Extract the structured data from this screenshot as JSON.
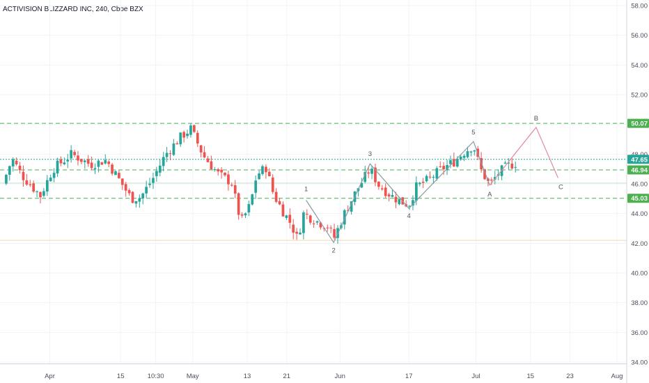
{
  "header": {
    "title": "ACTIVISION BLIZZARD INC, 240, Cboe BZX"
  },
  "colors": {
    "up": "#26a69a",
    "down": "#ef5350",
    "grid": "#f0f3fa",
    "dashed_level": "#4caf50",
    "dotted_level": "#26c6da",
    "wave": "#8a9aa3",
    "projection": "#e08a9a",
    "support": "#c8e6c9",
    "low_support": "#f0d9a8"
  },
  "chart_data": {
    "type": "candlestick",
    "title": "ACTIVISION BLIZZARD INC, 240, Cboe BZX",
    "xlabel": "",
    "ylabel": "",
    "ylim": [
      34,
      58
    ],
    "grid": true,
    "x_ticks": [
      "Apr",
      "15",
      "10:30",
      "May",
      "13",
      "21",
      "Jun",
      "17",
      "Jul",
      "15",
      "23",
      "Aug"
    ],
    "y_ticks": [
      "58.00",
      "56.00",
      "54.00",
      "52.00",
      "50.00",
      "48.00",
      "46.00",
      "44.00",
      "42.00",
      "40.00",
      "38.00",
      "36.00",
      "34.00"
    ],
    "price_levels": [
      {
        "label": "50.07",
        "value": 50.07,
        "style": "dashed",
        "color": "#4caf50"
      },
      {
        "label": "47.65",
        "value": 47.65,
        "style": "dotted",
        "color": "#26a69a"
      },
      {
        "label": "46.94",
        "value": 46.94,
        "style": "dashed",
        "color": "#4caf50"
      },
      {
        "label": "45.03",
        "value": 45.03,
        "style": "dashed",
        "color": "#4caf50"
      }
    ],
    "support_lines": [
      {
        "value": 46.05,
        "color": "#c8e6c9"
      },
      {
        "value": 42.2,
        "color": "#f0d9a8"
      }
    ],
    "wave_labels": [
      "1",
      "2",
      "3",
      "4",
      "5",
      "A",
      "B",
      "C"
    ],
    "wave_points": [
      {
        "label": "1",
        "t": 0.484,
        "v": 44.9
      },
      {
        "label": "2",
        "t": 0.528,
        "v": 42.05
      },
      {
        "label": "3",
        "t": 0.586,
        "v": 47.35
      },
      {
        "label": "4",
        "t": 0.648,
        "v": 44.35
      },
      {
        "label": "5",
        "t": 0.751,
        "v": 48.85
      },
      {
        "label": "A",
        "t": 0.777,
        "v": 45.9
      }
    ],
    "projection_points": [
      {
        "label": "A",
        "t": 0.777,
        "v": 45.9
      },
      {
        "label": "B",
        "t": 0.851,
        "v": 49.8
      },
      {
        "label": "C",
        "t": 0.886,
        "v": 46.4
      }
    ],
    "close_anchors": [
      [
        0.0,
        46.0
      ],
      [
        0.015,
        47.7
      ],
      [
        0.03,
        46.6
      ],
      [
        0.06,
        45.2
      ],
      [
        0.08,
        47.0
      ],
      [
        0.11,
        48.0
      ],
      [
        0.14,
        47.3
      ],
      [
        0.165,
        47.6
      ],
      [
        0.19,
        46.0
      ],
      [
        0.205,
        45.0
      ],
      [
        0.22,
        45.1
      ],
      [
        0.24,
        46.4
      ],
      [
        0.26,
        48.0
      ],
      [
        0.285,
        49.2
      ],
      [
        0.3,
        49.7
      ],
      [
        0.32,
        47.9
      ],
      [
        0.345,
        46.6
      ],
      [
        0.365,
        46.1
      ],
      [
        0.38,
        43.4
      ],
      [
        0.395,
        44.6
      ],
      [
        0.405,
        46.6
      ],
      [
        0.42,
        47.1
      ],
      [
        0.432,
        45.3
      ],
      [
        0.445,
        44.3
      ],
      [
        0.46,
        43.3
      ],
      [
        0.47,
        42.3
      ],
      [
        0.48,
        44.0
      ],
      [
        0.5,
        43.5
      ],
      [
        0.52,
        43.1
      ],
      [
        0.528,
        42.3
      ],
      [
        0.545,
        44.0
      ],
      [
        0.565,
        45.6
      ],
      [
        0.586,
        47.0
      ],
      [
        0.6,
        45.9
      ],
      [
        0.62,
        45.2
      ],
      [
        0.635,
        44.8
      ],
      [
        0.648,
        44.6
      ],
      [
        0.66,
        45.8
      ],
      [
        0.68,
        46.3
      ],
      [
        0.7,
        47.0
      ],
      [
        0.72,
        47.5
      ],
      [
        0.735,
        48.1
      ],
      [
        0.751,
        48.6
      ],
      [
        0.762,
        47.0
      ],
      [
        0.777,
        45.9
      ],
      [
        0.79,
        46.7
      ],
      [
        0.805,
        47.2
      ],
      [
        0.818,
        47.4
      ]
    ],
    "candle_count": 150,
    "seed": 7
  }
}
